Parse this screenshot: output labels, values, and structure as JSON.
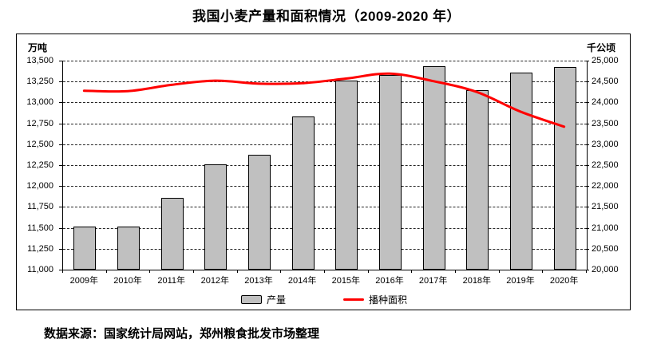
{
  "title": "我国小麦产量和面积情况（2009-2020 年）",
  "source_note": "数据来源：国家统计局网站，郑州粮食批发市场整理",
  "colors": {
    "bar_fill": "#c0c0c0",
    "bar_border": "#000000",
    "line": "#ff0000",
    "grid": "#000000"
  },
  "chart_data": {
    "type": "bar+line combo, dual axis",
    "categories": [
      "2009年",
      "2010年",
      "2011年",
      "2012年",
      "2013年",
      "2014年",
      "2015年",
      "2016年",
      "2017年",
      "2018年",
      "2019年",
      "2020年"
    ],
    "series": [
      {
        "name": "产量",
        "type": "bar",
        "axis": "left",
        "unit": "万吨",
        "color": "#c0c0c0",
        "values": [
          11512,
          11518,
          11860,
          12260,
          12370,
          12830,
          13260,
          13330,
          13430,
          13150,
          13360,
          13425
        ]
      },
      {
        "name": "播种面积",
        "type": "line",
        "axis": "right",
        "unit": "千公顷",
        "color": "#ff0000",
        "values": [
          24280,
          24270,
          24420,
          24520,
          24450,
          24460,
          24570,
          24690,
          24510,
          24250,
          23780,
          23420
        ]
      }
    ],
    "left_axis": {
      "unit": "万吨",
      "min": 11000,
      "max": 13500,
      "step": 250,
      "ticks": [
        "13,500",
        "13,250",
        "13,000",
        "12,750",
        "12,500",
        "12,250",
        "12,000",
        "11,750",
        "11,500",
        "11,250",
        "11,000"
      ]
    },
    "right_axis": {
      "unit": "千公顷",
      "min": 20000,
      "max": 25000,
      "step": 500,
      "ticks": [
        "25,000",
        "24,500",
        "24,000",
        "23,500",
        "23,000",
        "22,500",
        "22,000",
        "21,500",
        "21,000",
        "20,500",
        "20,000"
      ]
    },
    "legend": [
      {
        "label": "产量",
        "swatch": "bar"
      },
      {
        "label": "播种面积",
        "swatch": "line"
      }
    ],
    "grid": "horizontal dashed",
    "legend_position": "bottom center"
  }
}
